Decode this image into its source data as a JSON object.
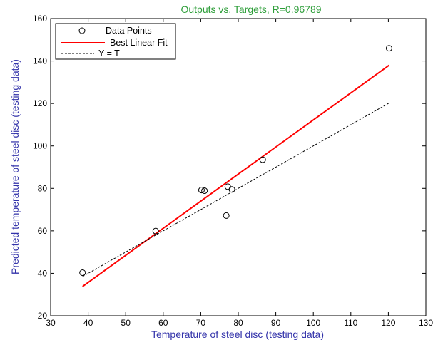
{
  "chart_data": {
    "type": "scatter",
    "title": "Outputs vs. Targets, R=0.96789",
    "xlabel": "Temperature of steel disc (testing data)",
    "ylabel": "Predicted  temperature of steel disc (testing data)",
    "xlim": [
      30,
      130
    ],
    "ylim": [
      20,
      160
    ],
    "xticks": [
      30,
      40,
      50,
      60,
      70,
      80,
      90,
      100,
      110,
      120,
      130
    ],
    "yticks": [
      20,
      40,
      60,
      80,
      100,
      120,
      140,
      160
    ],
    "grid": false,
    "legend_position": "top-left",
    "series": [
      {
        "name": "Data Points",
        "kind": "scatter",
        "marker": "circle",
        "color": "#000000",
        "x": [
          38.5,
          58.0,
          70.2,
          71.0,
          76.8,
          77.2,
          78.3,
          86.5,
          120.2
        ],
        "y": [
          40.3,
          59.9,
          79.2,
          78.9,
          67.2,
          80.8,
          79.5,
          93.5,
          146.0
        ]
      },
      {
        "name": "Best Linear Fit",
        "kind": "line",
        "color": "#ff0000",
        "style": "solid",
        "x": [
          38.5,
          120.2
        ],
        "y": [
          33.8,
          138.0
        ]
      },
      {
        "name": "Y = T",
        "kind": "line",
        "color": "#000000",
        "style": "dashed",
        "x": [
          38.5,
          120.2
        ],
        "y": [
          38.5,
          120.2
        ]
      }
    ]
  }
}
